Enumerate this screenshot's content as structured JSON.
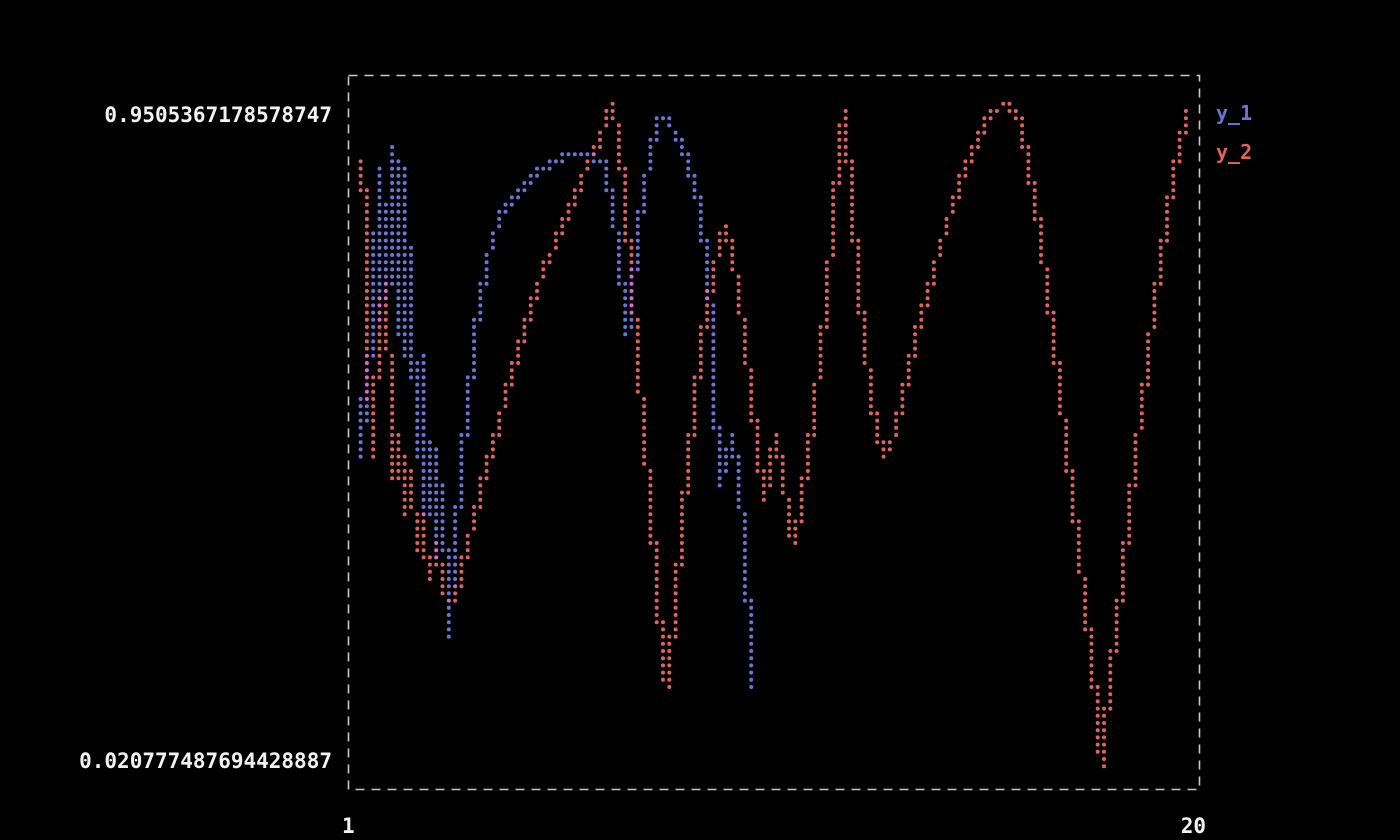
{
  "chart_data": {
    "type": "scatter",
    "title": "",
    "grid": false,
    "legend_position": "top-right",
    "background_color": "#000000",
    "border_color": "#c9c9c9",
    "overlap_color": "#d96ad4",
    "x_axis": {
      "min_label": "1",
      "max_label": "20",
      "min_value": 1,
      "max_value": 20
    },
    "y_axis": {
      "min_label": "0.020777487694428887",
      "max_label": "0.9505367178578747",
      "min_value": 0.020777487694428887,
      "max_value": 0.9505367178578747
    },
    "series": [
      {
        "name": "y_1",
        "color": "#6b75d8",
        "points": [
          [
            1.16,
            0.46
          ],
          [
            1.22,
            0.59
          ],
          [
            1.31,
            0.51
          ],
          [
            1.4,
            0.77
          ],
          [
            1.49,
            0.65
          ],
          [
            1.6,
            0.86
          ],
          [
            1.71,
            0.68
          ],
          [
            1.83,
            0.89
          ],
          [
            1.94,
            0.63
          ],
          [
            2.05,
            0.87
          ],
          [
            2.16,
            0.6
          ],
          [
            2.27,
            0.75
          ],
          [
            2.38,
            0.46
          ],
          [
            2.49,
            0.6
          ],
          [
            2.63,
            0.37
          ],
          [
            2.76,
            0.48
          ],
          [
            2.9,
            0.31
          ],
          [
            3.01,
            0.41
          ],
          [
            3.12,
            0.2
          ],
          [
            3.25,
            0.31
          ],
          [
            3.41,
            0.44
          ],
          [
            3.59,
            0.55
          ],
          [
            3.77,
            0.65
          ],
          [
            3.99,
            0.73
          ],
          [
            4.26,
            0.79
          ],
          [
            4.61,
            0.82
          ],
          [
            5.01,
            0.85
          ],
          [
            5.46,
            0.87
          ],
          [
            5.91,
            0.88
          ],
          [
            6.31,
            0.88
          ],
          [
            6.62,
            0.87
          ],
          [
            6.84,
            0.81
          ],
          [
            7.02,
            0.72
          ],
          [
            7.18,
            0.63
          ],
          [
            7.29,
            0.69
          ],
          [
            7.42,
            0.77
          ],
          [
            7.58,
            0.84
          ],
          [
            7.74,
            0.89
          ],
          [
            7.91,
            0.93
          ],
          [
            8.09,
            0.93
          ],
          [
            8.27,
            0.91
          ],
          [
            8.45,
            0.89
          ],
          [
            8.63,
            0.85
          ],
          [
            8.81,
            0.81
          ],
          [
            8.94,
            0.75
          ],
          [
            9.05,
            0.68
          ],
          [
            9.14,
            0.58
          ],
          [
            9.21,
            0.48
          ],
          [
            9.27,
            0.41
          ],
          [
            9.41,
            0.45
          ],
          [
            9.54,
            0.49
          ],
          [
            9.67,
            0.44
          ],
          [
            9.78,
            0.37
          ],
          [
            9.87,
            0.3
          ],
          [
            9.94,
            0.22
          ],
          [
            10.01,
            0.16
          ],
          [
            10.05,
            0.13
          ]
        ]
      },
      {
        "name": "y_2",
        "color": "#e2635b",
        "points": [
          [
            1.18,
            0.87
          ],
          [
            1.25,
            0.73
          ],
          [
            1.31,
            0.59
          ],
          [
            1.38,
            0.46
          ],
          [
            1.47,
            0.54
          ],
          [
            1.54,
            0.68
          ],
          [
            1.62,
            0.6
          ],
          [
            1.71,
            0.7
          ],
          [
            1.8,
            0.55
          ],
          [
            1.91,
            0.42
          ],
          [
            2.03,
            0.49
          ],
          [
            2.14,
            0.37
          ],
          [
            2.27,
            0.44
          ],
          [
            2.41,
            0.32
          ],
          [
            2.54,
            0.37
          ],
          [
            2.69,
            0.28
          ],
          [
            2.85,
            0.33
          ],
          [
            3.01,
            0.26
          ],
          [
            3.16,
            0.25
          ],
          [
            3.32,
            0.27
          ],
          [
            3.5,
            0.32
          ],
          [
            3.72,
            0.37
          ],
          [
            3.94,
            0.43
          ],
          [
            4.21,
            0.49
          ],
          [
            4.5,
            0.56
          ],
          [
            4.84,
            0.63
          ],
          [
            5.17,
            0.7
          ],
          [
            5.51,
            0.75
          ],
          [
            5.84,
            0.8
          ],
          [
            6.17,
            0.85
          ],
          [
            6.44,
            0.89
          ],
          [
            6.66,
            0.92
          ],
          [
            6.84,
            0.95
          ],
          [
            6.98,
            0.91
          ],
          [
            7.09,
            0.84
          ],
          [
            7.2,
            0.76
          ],
          [
            7.31,
            0.68
          ],
          [
            7.42,
            0.59
          ],
          [
            7.53,
            0.51
          ],
          [
            7.65,
            0.42
          ],
          [
            7.76,
            0.34
          ],
          [
            7.87,
            0.25
          ],
          [
            7.98,
            0.18
          ],
          [
            8.07,
            0.13
          ],
          [
            8.16,
            0.18
          ],
          [
            8.27,
            0.25
          ],
          [
            8.38,
            0.33
          ],
          [
            8.49,
            0.41
          ],
          [
            8.63,
            0.49
          ],
          [
            8.76,
            0.56
          ],
          [
            8.9,
            0.63
          ],
          [
            9.05,
            0.69
          ],
          [
            9.21,
            0.74
          ],
          [
            9.39,
            0.78
          ],
          [
            9.56,
            0.74
          ],
          [
            9.72,
            0.68
          ],
          [
            9.88,
            0.6
          ],
          [
            10.01,
            0.53
          ],
          [
            10.14,
            0.46
          ],
          [
            10.28,
            0.39
          ],
          [
            10.41,
            0.44
          ],
          [
            10.54,
            0.49
          ],
          [
            10.68,
            0.44
          ],
          [
            10.81,
            0.38
          ],
          [
            10.95,
            0.33
          ],
          [
            11.08,
            0.37
          ],
          [
            11.21,
            0.43
          ],
          [
            11.35,
            0.49
          ],
          [
            11.48,
            0.56
          ],
          [
            11.62,
            0.63
          ],
          [
            11.75,
            0.72
          ],
          [
            11.88,
            0.82
          ],
          [
            12.0,
            0.9
          ],
          [
            12.08,
            0.94
          ],
          [
            12.17,
            0.89
          ],
          [
            12.29,
            0.8
          ],
          [
            12.42,
            0.7
          ],
          [
            12.55,
            0.62
          ],
          [
            12.69,
            0.55
          ],
          [
            12.84,
            0.49
          ],
          [
            13.0,
            0.46
          ],
          [
            13.15,
            0.47
          ],
          [
            13.31,
            0.51
          ],
          [
            13.49,
            0.56
          ],
          [
            13.67,
            0.61
          ],
          [
            13.87,
            0.66
          ],
          [
            14.09,
            0.71
          ],
          [
            14.31,
            0.76
          ],
          [
            14.56,
            0.81
          ],
          [
            14.83,
            0.86
          ],
          [
            15.1,
            0.9
          ],
          [
            15.36,
            0.93
          ],
          [
            15.63,
            0.948
          ],
          [
            15.83,
            0.9505
          ],
          [
            16.03,
            0.94
          ],
          [
            16.26,
            0.87
          ],
          [
            16.48,
            0.79
          ],
          [
            16.7,
            0.69
          ],
          [
            16.92,
            0.58
          ],
          [
            17.15,
            0.46
          ],
          [
            17.37,
            0.35
          ],
          [
            17.55,
            0.25
          ],
          [
            17.7,
            0.17
          ],
          [
            17.84,
            0.09
          ],
          [
            17.93,
            0.0208
          ],
          [
            18.04,
            0.09
          ],
          [
            18.17,
            0.17
          ],
          [
            18.33,
            0.25
          ],
          [
            18.51,
            0.35
          ],
          [
            18.69,
            0.45
          ],
          [
            18.89,
            0.55
          ],
          [
            19.09,
            0.65
          ],
          [
            19.29,
            0.74
          ],
          [
            19.49,
            0.82
          ],
          [
            19.69,
            0.89
          ],
          [
            19.87,
            0.94
          ]
        ]
      }
    ]
  }
}
